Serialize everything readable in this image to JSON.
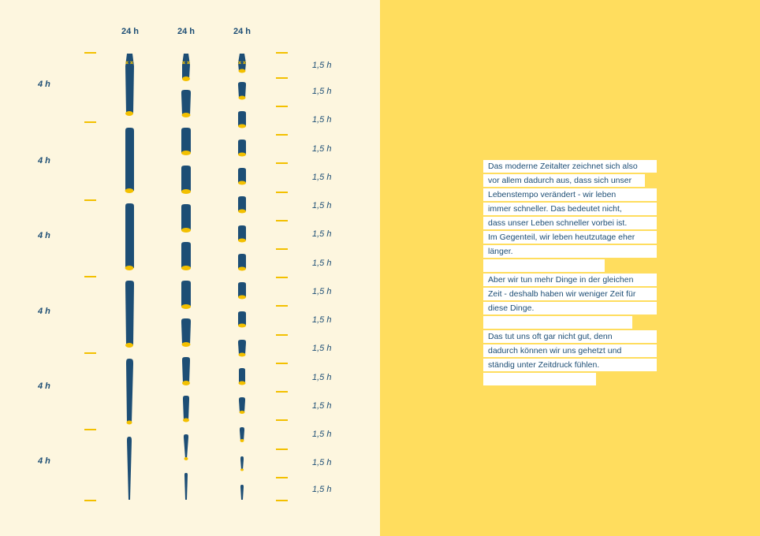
{
  "diagram": {
    "column_headers": [
      "24 h",
      "24 h",
      "24 h"
    ],
    "left_segment_labels": [
      "4 h",
      "4 h",
      "4 h",
      "4 h",
      "4 h",
      "4 h"
    ],
    "right_segment_labels": [
      "1,5 h",
      "1,5 h",
      "1,5 h",
      "1,5 h",
      "1,5 h",
      "1,5 h",
      "1,5 h",
      "1,5 h",
      "1,5 h",
      "1,5 h",
      "1,5 h",
      "1,5 h",
      "1,5 h",
      "1,5 h",
      "1,5 h",
      "1,5 h"
    ],
    "colors": {
      "left_bg": "#fdf6df",
      "right_bg": "#ffdd5e",
      "worm_body": "#1d4e75",
      "tick": "#f3c000",
      "joint": "#f3c000",
      "text": "#1d4e75"
    }
  },
  "text": {
    "paragraph_1": [
      "Das moderne Zeitalter zeichnet sich also",
      "vor allem dadurch aus, dass sich unser",
      "Lebenstempo verändert - wir leben",
      "immer schneller. Das bedeutet nicht,",
      "dass unser Leben schneller vorbei ist.",
      "Im Gegenteil, wir leben heutzutage eher",
      "länger."
    ],
    "paragraph_2": [
      "Aber wir tun mehr Dinge in der gleichen",
      "Zeit - deshalb haben wir weniger Zeit für",
      "diese Dinge."
    ],
    "paragraph_3": [
      "Das tut uns oft gar nicht gut, denn",
      "dadurch können wir uns gehetzt und",
      "ständig unter Zeitdruck fühlen."
    ]
  }
}
